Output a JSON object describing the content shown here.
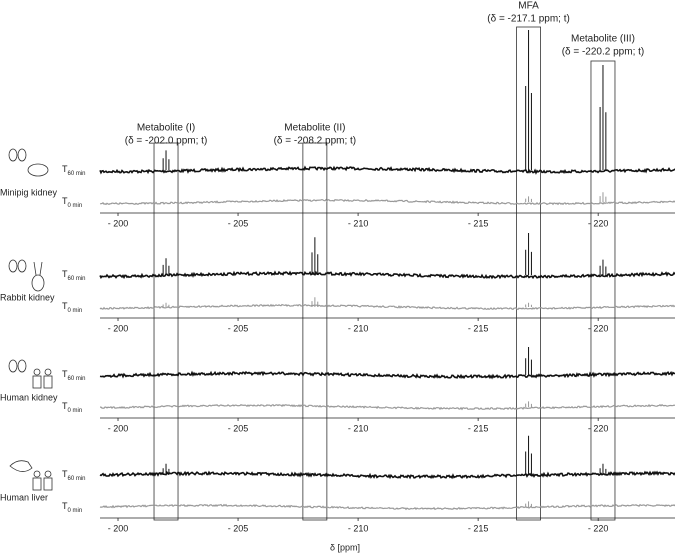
{
  "chart_data": {
    "type": "spectrum",
    "x_label": "δ [ppm]",
    "xlim": [
      -199.25,
      -223.2
    ],
    "xticks": [
      {
        "value": -200,
        "label": "- 200"
      },
      {
        "value": -205,
        "label": "- 205"
      },
      {
        "value": -210,
        "label": "- 210"
      },
      {
        "value": -215,
        "label": "- 215"
      },
      {
        "value": -220,
        "label": "- 220"
      }
    ],
    "annotations": [
      {
        "name": "Metabolite (I)",
        "label": "(δ = -202.0 ppm; t)",
        "ppm": -202.0
      },
      {
        "name": "Metabolite (II)",
        "label": "(δ = -208.2 ppm; t)",
        "ppm": -208.2
      },
      {
        "name": "MFA",
        "label": "(δ = -217.1 ppm; t)",
        "ppm": -217.1
      },
      {
        "name": "Metabolite (III)",
        "label": "(δ = -220.2 ppm; t)",
        "ppm": -220.2
      }
    ],
    "panels": [
      {
        "name": "Minipig kidney",
        "traces": [
          {
            "symbol": "T",
            "sub": "60 min",
            "color": "#111111",
            "intensities": [
              14,
              0,
              100,
              75
            ]
          },
          {
            "symbol": "T",
            "sub": "0 min",
            "color": "#999999",
            "intensities": [
              0,
              0,
              4,
              7
            ]
          }
        ]
      },
      {
        "name": "Rabbit kidney",
        "traces": [
          {
            "symbol": "T",
            "sub": "60 min",
            "color": "#111111",
            "intensities": [
              12,
              27,
              30,
              11
            ]
          },
          {
            "symbol": "T",
            "sub": "0 min",
            "color": "#999999",
            "intensities": [
              3,
              7,
              3,
              0
            ]
          }
        ]
      },
      {
        "name": "Human kidney",
        "traces": [
          {
            "symbol": "T",
            "sub": "60 min",
            "color": "#111111",
            "intensities": [
              0,
              0,
              20,
              0
            ]
          },
          {
            "symbol": "T",
            "sub": "0 min",
            "color": "#999999",
            "intensities": [
              0,
              0,
              4,
              0
            ]
          }
        ]
      },
      {
        "name": "Human liver",
        "traces": [
          {
            "symbol": "T",
            "sub": "60 min",
            "color": "#111111",
            "intensities": [
              8,
              0,
              28,
              8
            ]
          },
          {
            "symbol": "T",
            "sub": "0 min",
            "color": "#999999",
            "intensities": [
              0,
              0,
              4,
              0
            ]
          }
        ]
      }
    ]
  }
}
